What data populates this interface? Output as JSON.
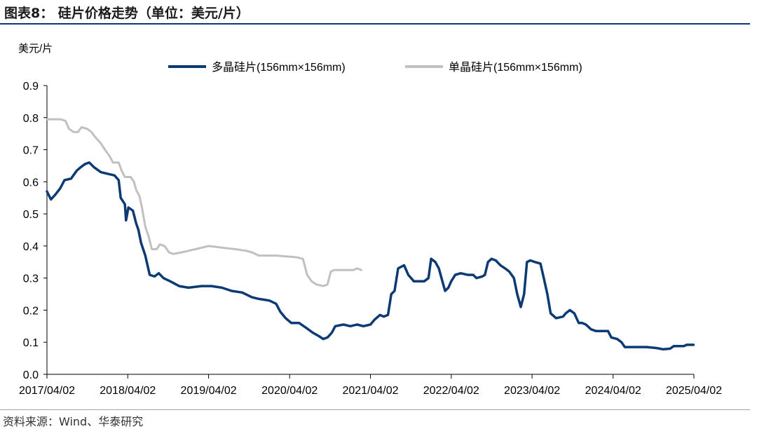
{
  "header": {
    "title": "图表8：  硅片价格走势（单位：美元/片）"
  },
  "footer": {
    "source": "资料来源：Wind、华泰研究"
  },
  "colors": {
    "series1": "#0b3a75",
    "series2": "#c0c0c0",
    "axis": "#000000",
    "rule": "#0b3a75"
  },
  "chart_data": {
    "type": "line",
    "ylabel": "美元/片",
    "ylim": [
      0,
      0.9
    ],
    "yticks": [
      "0.0",
      "0.1",
      "0.2",
      "0.3",
      "0.4",
      "0.5",
      "0.6",
      "0.7",
      "0.8",
      "0.9"
    ],
    "xticks": [
      "2017/04/02",
      "2018/04/02",
      "2019/04/02",
      "2020/04/02",
      "2021/04/02",
      "2022/04/02",
      "2023/04/02",
      "2024/04/02",
      "2025/04/02"
    ],
    "xlim": [
      "2017/04/02",
      "2025/04/02"
    ],
    "grid": false,
    "legend": "top",
    "series": [
      {
        "name": "多晶硅片(156mm×156mm)",
        "points": [
          [
            "2017/04/02",
            0.57
          ],
          [
            "2017/04/20",
            0.545
          ],
          [
            "2017/05/10",
            0.56
          ],
          [
            "2017/06/01",
            0.58
          ],
          [
            "2017/06/20",
            0.605
          ],
          [
            "2017/07/20",
            0.61
          ],
          [
            "2017/08/15",
            0.635
          ],
          [
            "2017/09/01",
            0.645
          ],
          [
            "2017/09/20",
            0.655
          ],
          [
            "2017/10/10",
            0.66
          ],
          [
            "2017/11/01",
            0.645
          ],
          [
            "2017/12/01",
            0.63
          ],
          [
            "2018/01/01",
            0.625
          ],
          [
            "2018/02/01",
            0.62
          ],
          [
            "2018/02/20",
            0.605
          ],
          [
            "2018/03/01",
            0.55
          ],
          [
            "2018/03/20",
            0.53
          ],
          [
            "2018/03/25",
            0.48
          ],
          [
            "2018/04/05",
            0.52
          ],
          [
            "2018/04/25",
            0.51
          ],
          [
            "2018/05/10",
            0.47
          ],
          [
            "2018/05/20",
            0.45
          ],
          [
            "2018/06/01",
            0.41
          ],
          [
            "2018/06/20",
            0.37
          ],
          [
            "2018/07/10",
            0.31
          ],
          [
            "2018/08/01",
            0.305
          ],
          [
            "2018/08/10",
            0.31
          ],
          [
            "2018/08/20",
            0.315
          ],
          [
            "2018/09/10",
            0.3
          ],
          [
            "2018/10/10",
            0.29
          ],
          [
            "2018/11/20",
            0.275
          ],
          [
            "2019/01/01",
            0.27
          ],
          [
            "2019/03/01",
            0.275
          ],
          [
            "2019/04/15",
            0.275
          ],
          [
            "2019/06/01",
            0.27
          ],
          [
            "2019/07/15",
            0.26
          ],
          [
            "2019/09/01",
            0.255
          ],
          [
            "2019/10/15",
            0.24
          ],
          [
            "2019/11/15",
            0.235
          ],
          [
            "2020/01/01",
            0.23
          ],
          [
            "2020/02/01",
            0.22
          ],
          [
            "2020/02/20",
            0.195
          ],
          [
            "2020/03/15",
            0.175
          ],
          [
            "2020/04/10",
            0.16
          ],
          [
            "2020/05/15",
            0.16
          ],
          [
            "2020/06/15",
            0.145
          ],
          [
            "2020/07/15",
            0.13
          ],
          [
            "2020/08/10",
            0.12
          ],
          [
            "2020/09/01",
            0.11
          ],
          [
            "2020/09/20",
            0.115
          ],
          [
            "2020/10/10",
            0.13
          ],
          [
            "2020/10/25",
            0.15
          ],
          [
            "2020/12/01",
            0.155
          ],
          [
            "2021/01/01",
            0.15
          ],
          [
            "2021/02/01",
            0.155
          ],
          [
            "2021/03/01",
            0.15
          ],
          [
            "2021/04/02",
            0.155
          ],
          [
            "2021/04/20",
            0.17
          ],
          [
            "2021/05/15",
            0.185
          ],
          [
            "2021/06/01",
            0.18
          ],
          [
            "2021/06/20",
            0.185
          ],
          [
            "2021/07/05",
            0.25
          ],
          [
            "2021/07/20",
            0.26
          ],
          [
            "2021/08/05",
            0.33
          ],
          [
            "2021/09/01",
            0.34
          ],
          [
            "2021/09/20",
            0.31
          ],
          [
            "2021/10/15",
            0.29
          ],
          [
            "2021/11/15",
            0.29
          ],
          [
            "2021/12/01",
            0.29
          ],
          [
            "2021/12/20",
            0.3
          ],
          [
            "2022/01/01",
            0.36
          ],
          [
            "2022/01/20",
            0.35
          ],
          [
            "2022/02/05",
            0.33
          ],
          [
            "2022/02/25",
            0.28
          ],
          [
            "2022/03/05",
            0.26
          ],
          [
            "2022/03/20",
            0.27
          ],
          [
            "2022/04/02",
            0.29
          ],
          [
            "2022/04/20",
            0.31
          ],
          [
            "2022/05/15",
            0.315
          ],
          [
            "2022/06/15",
            0.31
          ],
          [
            "2022/07/10",
            0.31
          ],
          [
            "2022/07/25",
            0.3
          ],
          [
            "2022/08/20",
            0.305
          ],
          [
            "2022/09/01",
            0.31
          ],
          [
            "2022/09/15",
            0.35
          ],
          [
            "2022/10/01",
            0.36
          ],
          [
            "2022/10/20",
            0.355
          ],
          [
            "2022/11/10",
            0.34
          ],
          [
            "2022/12/01",
            0.33
          ],
          [
            "2022/12/20",
            0.32
          ],
          [
            "2023/01/10",
            0.3
          ],
          [
            "2023/01/25",
            0.25
          ],
          [
            "2023/02/10",
            0.21
          ],
          [
            "2023/02/25",
            0.25
          ],
          [
            "2023/03/10",
            0.35
          ],
          [
            "2023/03/25",
            0.355
          ],
          [
            "2023/04/15",
            0.35
          ],
          [
            "2023/05/10",
            0.345
          ],
          [
            "2023/05/25",
            0.3
          ],
          [
            "2023/06/10",
            0.25
          ],
          [
            "2023/06/25",
            0.19
          ],
          [
            "2023/07/20",
            0.175
          ],
          [
            "2023/08/20",
            0.18
          ],
          [
            "2023/09/01",
            0.19
          ],
          [
            "2023/09/20",
            0.2
          ],
          [
            "2023/10/10",
            0.19
          ],
          [
            "2023/10/30",
            0.16
          ],
          [
            "2023/11/15",
            0.16
          ],
          [
            "2023/12/01",
            0.155
          ],
          [
            "2023/12/25",
            0.14
          ],
          [
            "2024/01/15",
            0.135
          ],
          [
            "2024/02/15",
            0.135
          ],
          [
            "2024/03/10",
            0.135
          ],
          [
            "2024/03/25",
            0.115
          ],
          [
            "2024/04/20",
            0.11
          ],
          [
            "2024/05/10",
            0.1
          ],
          [
            "2024/05/25",
            0.085
          ],
          [
            "2024/07/01",
            0.085
          ],
          [
            "2024/09/01",
            0.085
          ],
          [
            "2024/10/15",
            0.082
          ],
          [
            "2024/11/15",
            0.078
          ],
          [
            "2024/12/15",
            0.08
          ],
          [
            "2025/01/01",
            0.088
          ],
          [
            "2025/02/15",
            0.088
          ],
          [
            "2025/03/01",
            0.092
          ],
          [
            "2025/03/31",
            0.092
          ]
        ]
      },
      {
        "name": "单晶硅片(156mm×156mm)",
        "points": [
          [
            "2017/04/02",
            0.795
          ],
          [
            "2017/06/01",
            0.795
          ],
          [
            "2017/06/25",
            0.79
          ],
          [
            "2017/07/10",
            0.765
          ],
          [
            "2017/08/01",
            0.755
          ],
          [
            "2017/08/20",
            0.755
          ],
          [
            "2017/09/05",
            0.77
          ],
          [
            "2017/10/01",
            0.765
          ],
          [
            "2017/10/20",
            0.755
          ],
          [
            "2017/11/05",
            0.74
          ],
          [
            "2017/12/01",
            0.72
          ],
          [
            "2017/12/20",
            0.7
          ],
          [
            "2018/01/10",
            0.68
          ],
          [
            "2018/01/25",
            0.66
          ],
          [
            "2018/02/20",
            0.66
          ],
          [
            "2018/03/05",
            0.635
          ],
          [
            "2018/03/20",
            0.615
          ],
          [
            "2018/04/15",
            0.615
          ],
          [
            "2018/04/30",
            0.6
          ],
          [
            "2018/05/10",
            0.575
          ],
          [
            "2018/05/25",
            0.555
          ],
          [
            "2018/06/05",
            0.52
          ],
          [
            "2018/06/20",
            0.46
          ],
          [
            "2018/07/05",
            0.43
          ],
          [
            "2018/07/20",
            0.39
          ],
          [
            "2018/08/10",
            0.39
          ],
          [
            "2018/08/25",
            0.405
          ],
          [
            "2018/09/15",
            0.4
          ],
          [
            "2018/10/05",
            0.38
          ],
          [
            "2018/10/25",
            0.375
          ],
          [
            "2018/12/01",
            0.38
          ],
          [
            "2019/01/01",
            0.385
          ],
          [
            "2019/02/01",
            0.39
          ],
          [
            "2019/04/02",
            0.4
          ],
          [
            "2019/06/01",
            0.395
          ],
          [
            "2019/08/01",
            0.39
          ],
          [
            "2019/09/20",
            0.385
          ],
          [
            "2019/10/15",
            0.38
          ],
          [
            "2019/11/15",
            0.37
          ],
          [
            "2020/02/01",
            0.37
          ],
          [
            "2020/05/01",
            0.365
          ],
          [
            "2020/06/01",
            0.36
          ],
          [
            "2020/06/20",
            0.31
          ],
          [
            "2020/07/10",
            0.29
          ],
          [
            "2020/08/01",
            0.28
          ],
          [
            "2020/09/01",
            0.275
          ],
          [
            "2020/09/20",
            0.28
          ],
          [
            "2020/10/05",
            0.32
          ],
          [
            "2020/10/20",
            0.325
          ],
          [
            "2020/12/01",
            0.325
          ],
          [
            "2021/01/15",
            0.325
          ],
          [
            "2021/02/01",
            0.33
          ],
          [
            "2021/02/20",
            0.325
          ]
        ]
      }
    ]
  }
}
